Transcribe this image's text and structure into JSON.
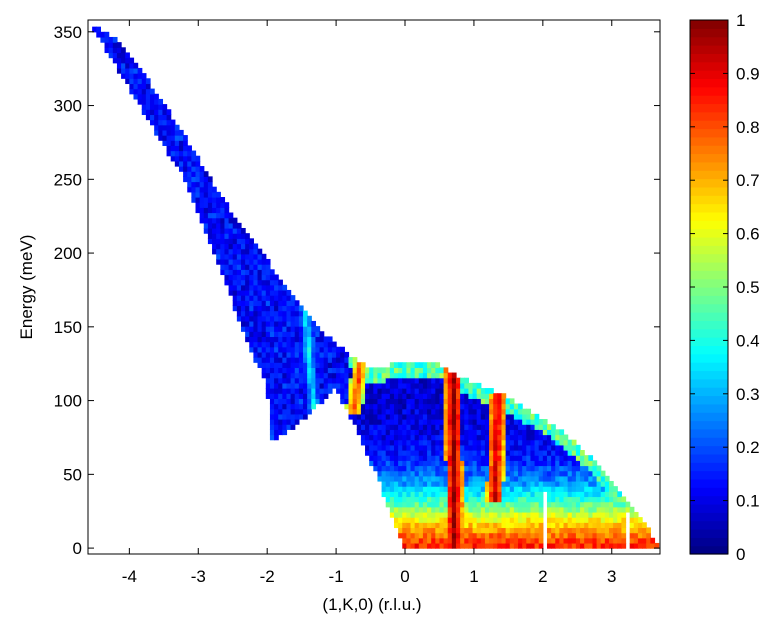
{
  "chart_data": {
    "type": "heatmap",
    "title": "",
    "xlabel": "(1,K,0) (r.l.u.)",
    "ylabel": "Energy (meV)",
    "xlim": [
      -4.6,
      3.7
    ],
    "ylim": [
      -4,
      358
    ],
    "x_ticks": [
      "-4",
      "-3",
      "-2",
      "-1",
      "0",
      "1",
      "2",
      "3"
    ],
    "x_tick_values": [
      -4,
      -3,
      -2,
      -1,
      0,
      1,
      2,
      3
    ],
    "y_ticks": [
      "0",
      "50",
      "100",
      "150",
      "200",
      "250",
      "300",
      "350"
    ],
    "y_tick_values": [
      0,
      50,
      100,
      150,
      200,
      250,
      300,
      350
    ],
    "colormap": "jet",
    "colorbar": {
      "range": [
        0,
        1
      ],
      "ticks": [
        "0",
        "0.1",
        "0.2",
        "0.3",
        "0.4",
        "0.5",
        "0.6",
        "0.7",
        "0.8",
        "0.9",
        "1"
      ],
      "tick_values": [
        0,
        0.1,
        0.2,
        0.3,
        0.4,
        0.5,
        0.6,
        0.7,
        0.8,
        0.9,
        1
      ]
    },
    "coverage_upper_edge": {
      "K": [
        -4.6,
        -4.2,
        -3.7,
        -3.2,
        -2.8,
        -2.4,
        -2.0,
        -1.6,
        -1.3,
        -1.0,
        -0.7,
        -0.5,
        -0.1,
        0.2,
        0.5,
        0.7,
        1.0,
        1.4,
        1.8,
        2.2,
        2.6,
        3.0,
        3.3,
        3.6,
        3.7
      ],
      "E": [
        358,
        345,
        315,
        280,
        248,
        220,
        195,
        170,
        152,
        138,
        128,
        122,
        125,
        125,
        125,
        118,
        112,
        104,
        94,
        82,
        66,
        46,
        28,
        8,
        0
      ]
    },
    "coverage_lower_edge": {
      "K": [
        -4.6,
        -3.2,
        -2.6,
        -2.3,
        -2.0,
        -1.95,
        -1.6,
        -1.3,
        -1.0,
        -0.7,
        -0.4,
        -0.2,
        0.0,
        3.7
      ],
      "E": [
        358,
        250,
        180,
        140,
        110,
        73,
        82,
        96,
        108,
        80,
        48,
        22,
        0,
        0
      ]
    },
    "features": [
      {
        "K_start": -1.5,
        "K_end": -1.3,
        "E_start": 190,
        "E_end": 85,
        "intensity": 0.38
      },
      {
        "K_start": -0.6,
        "K_end": -0.75,
        "E_start": 140,
        "E_end": 90,
        "intensity": 0.82
      },
      {
        "K_start": 0.7,
        "K_end": 0.72,
        "E_start": 122,
        "E_end": 0,
        "intensity": 1.0
      },
      {
        "K_start": 1.35,
        "K_end": 1.3,
        "E_start": 105,
        "E_end": 30,
        "intensity": 0.95
      }
    ]
  }
}
